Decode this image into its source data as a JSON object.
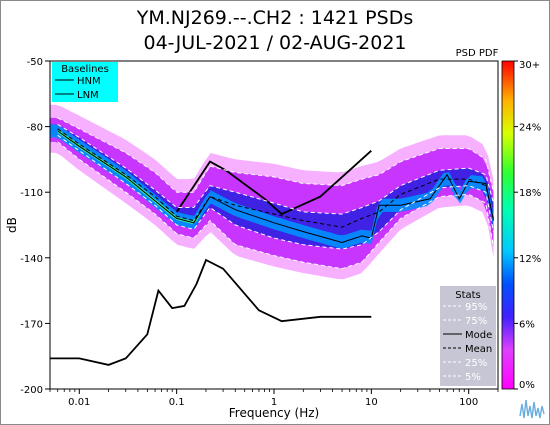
{
  "title_line1": "YM.NJ269.--.CH2 : 1421 PSDs",
  "title_line2": "04-JUL-2021 / 02-AUG-2021",
  "chart_data": {
    "type": "heatmap",
    "xlabel": "Frequency (Hz)",
    "ylabel": "dB",
    "x_scale": "log",
    "xlim": [
      0.005,
      200
    ],
    "ylim": [
      -200,
      -50
    ],
    "x_ticks": [
      {
        "value": 0.01,
        "label": "0.01"
      },
      {
        "value": 0.1,
        "label": "0.1"
      },
      {
        "value": 1,
        "label": "1"
      },
      {
        "value": 10,
        "label": "10"
      },
      {
        "value": 100,
        "label": "100"
      }
    ],
    "y_ticks": [
      {
        "value": -50,
        "label": "-50"
      },
      {
        "value": -80,
        "label": "-80"
      },
      {
        "value": -110,
        "label": "-110"
      },
      {
        "value": -140,
        "label": "-140"
      },
      {
        "value": -170,
        "label": "-170"
      },
      {
        "value": -200,
        "label": "-200"
      }
    ],
    "colorbar": {
      "label": "PSD PDF",
      "ticks": [
        "0%",
        "6%",
        "12%",
        "18%",
        "24%",
        "30+"
      ],
      "range": [
        0,
        30
      ]
    },
    "baselines_legend": {
      "title": "Baselines",
      "items": [
        "HNM",
        "LNM"
      ]
    },
    "stats_legend": {
      "title": "Stats",
      "items": [
        {
          "label": "95%",
          "style": "dashed",
          "color": "#ffffff"
        },
        {
          "label": "75%",
          "style": "dashed",
          "color": "#ffffff"
        },
        {
          "label": "Mode",
          "style": "solid",
          "color": "#000000"
        },
        {
          "label": "Mean",
          "style": "dashed",
          "color": "#000000"
        },
        {
          "label": "25%",
          "style": "dashed",
          "color": "#ffffff"
        },
        {
          "label": "5%",
          "style": "dashed",
          "color": "#ffffff"
        }
      ]
    },
    "series": [
      {
        "name": "HNM",
        "x": [
          0.1,
          0.22,
          0.32,
          0.8,
          1.2,
          3,
          10
        ],
        "y": [
          -119,
          -96,
          -100,
          -113,
          -120,
          -112,
          -91
        ]
      },
      {
        "name": "LNM",
        "x": [
          0.005,
          0.01,
          0.02,
          0.03,
          0.05,
          0.065,
          0.09,
          0.12,
          0.16,
          0.2,
          0.3,
          0.7,
          1.2,
          3,
          10
        ],
        "y": [
          -186,
          -186,
          -189,
          -186,
          -175,
          -155,
          -163,
          -162,
          -152,
          -141,
          -145,
          -164,
          -169,
          -167,
          -167
        ]
      },
      {
        "name": "95%",
        "x": [
          0.006,
          0.01,
          0.03,
          0.06,
          0.1,
          0.15,
          0.22,
          0.4,
          1,
          2,
          5,
          8,
          12,
          20,
          50,
          100,
          150,
          180
        ],
        "y": [
          -76,
          -81,
          -92,
          -101,
          -110,
          -110,
          -98,
          -101,
          -103,
          -106,
          -107,
          -104,
          -102,
          -96,
          -90,
          -90,
          -95,
          -110
        ]
      },
      {
        "name": "75%",
        "x": [
          0.006,
          0.01,
          0.03,
          0.06,
          0.1,
          0.15,
          0.22,
          0.4,
          1,
          2,
          5,
          8,
          12,
          20,
          50,
          100,
          150,
          180
        ],
        "y": [
          -79,
          -85,
          -99,
          -109,
          -117,
          -117,
          -107,
          -110,
          -115,
          -119,
          -120,
          -117,
          -114,
          -107,
          -100,
          -99,
          -102,
          -115
        ]
      },
      {
        "name": "Mode",
        "x": [
          0.006,
          0.01,
          0.03,
          0.06,
          0.1,
          0.15,
          0.22,
          0.4,
          1,
          2,
          5,
          8,
          10,
          12,
          20,
          40,
          60,
          80,
          100,
          150,
          180
        ],
        "y": [
          -82,
          -89,
          -103,
          -114,
          -122,
          -124,
          -112,
          -118,
          -124,
          -128,
          -133,
          -130,
          -131,
          -116,
          -116,
          -113,
          -102,
          -113,
          -105,
          -106,
          -123
        ]
      },
      {
        "name": "Mean",
        "x": [
          0.006,
          0.01,
          0.03,
          0.06,
          0.1,
          0.15,
          0.22,
          0.4,
          1,
          2,
          5,
          8,
          12,
          20,
          50,
          100,
          150,
          180
        ],
        "y": [
          -81,
          -88,
          -102,
          -112,
          -121,
          -123,
          -112,
          -116,
          -120,
          -123,
          -126,
          -122,
          -119,
          -111,
          -104,
          -104,
          -107,
          -122
        ]
      },
      {
        "name": "25%",
        "x": [
          0.006,
          0.01,
          0.03,
          0.06,
          0.1,
          0.15,
          0.22,
          0.4,
          1,
          2,
          5,
          8,
          12,
          20,
          50,
          100,
          150,
          180
        ],
        "y": [
          -84,
          -91,
          -106,
          -116,
          -125,
          -127,
          -117,
          -125,
          -131,
          -134,
          -136,
          -134,
          -128,
          -118,
          -108,
          -107,
          -110,
          -128
        ]
      },
      {
        "name": "5%",
        "x": [
          0.006,
          0.01,
          0.03,
          0.06,
          0.1,
          0.15,
          0.22,
          0.4,
          1,
          2,
          5,
          8,
          12,
          20,
          50,
          100,
          150,
          180
        ],
        "y": [
          -87,
          -95,
          -110,
          -120,
          -129,
          -131,
          -123,
          -134,
          -139,
          -142,
          -145,
          -142,
          -133,
          -122,
          -112,
          -111,
          -115,
          -135
        ]
      }
    ]
  }
}
